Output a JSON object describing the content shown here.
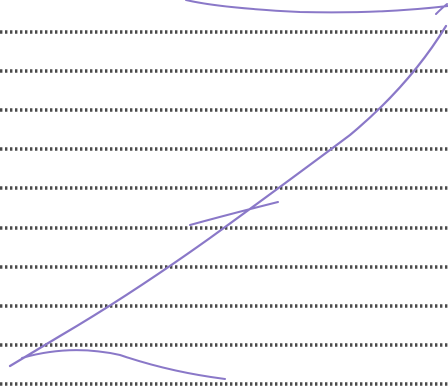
{
  "page": {
    "background_color": "#ffffff"
  },
  "ruled_lines": {
    "count": 10,
    "style": "dotted",
    "dot_color": "#4a4a4a"
  },
  "pen_strokes": {
    "count": 5,
    "ink_color": "#8a78c8"
  }
}
